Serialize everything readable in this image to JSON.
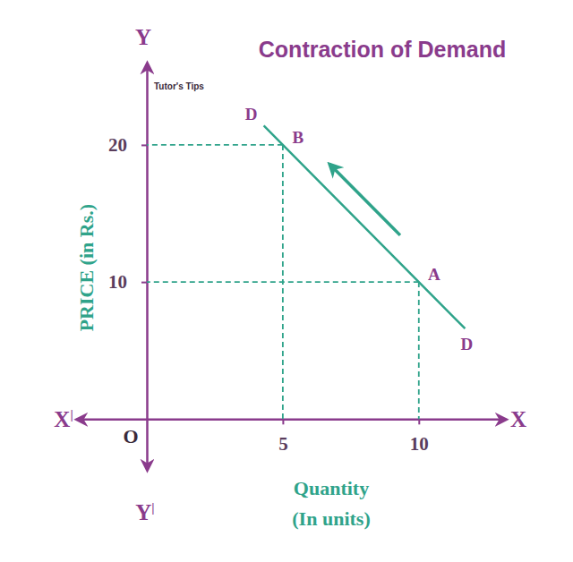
{
  "chart_data": {
    "type": "line",
    "title": "Contraction of Demand",
    "logo": "Tutor's Tips",
    "xlabel": [
      "Quantity",
      "(In units)"
    ],
    "ylabel": "PRICE (in Rs.)",
    "axis_names": {
      "x": "X",
      "x_neg": "X|",
      "y": "Y",
      "y_neg": "Y|",
      "origin": "O"
    },
    "x": [
      4.3,
      5,
      10,
      11.7
    ],
    "series": [
      {
        "color": "#2fa38a",
        "values": [
          21.4,
          20,
          10,
          6.6
        ],
        "point_labels": [
          "D",
          "B",
          "A",
          "D"
        ]
      }
    ],
    "xlim": [
      -2.6,
      13.2
    ],
    "ylim": [
      -3.7,
      26
    ],
    "xticks": [
      5,
      10
    ],
    "yticks": [
      10,
      20
    ],
    "grid": false
  }
}
